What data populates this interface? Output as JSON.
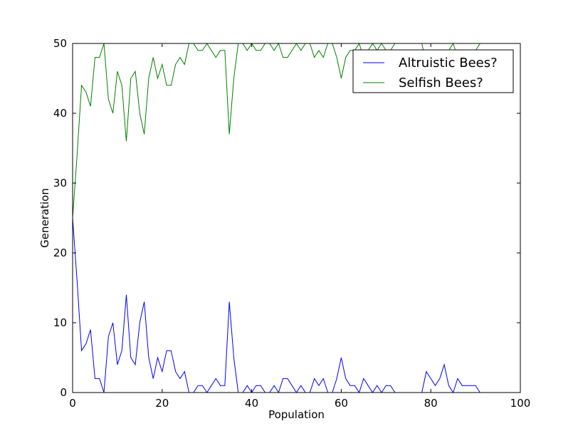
{
  "chart_data": {
    "type": "line",
    "title": "",
    "xlabel": "Population",
    "ylabel": "Generation",
    "xlim": [
      0,
      100
    ],
    "ylim": [
      0,
      50
    ],
    "xticks": [
      "0",
      "20",
      "40",
      "60",
      "80",
      "100"
    ],
    "yticks": [
      "0",
      "10",
      "20",
      "30",
      "40",
      "50"
    ],
    "grid": false,
    "legend_position": "upper-right",
    "series": [
      {
        "name": "Altruistic Bees?",
        "color": "#0000ff",
        "values": [
          25,
          16,
          6,
          7,
          9,
          2,
          2,
          0,
          8,
          10,
          4,
          6,
          14,
          5,
          4,
          10,
          13,
          5,
          2,
          5,
          3,
          6,
          6,
          3,
          2,
          3,
          0,
          0,
          1,
          1,
          0,
          1,
          2,
          1,
          1,
          13,
          5,
          0,
          0,
          1,
          0,
          1,
          1,
          0,
          0,
          1,
          0,
          2,
          2,
          1,
          0,
          1,
          0,
          0,
          2,
          1,
          2,
          0,
          0,
          2,
          5,
          2,
          1,
          1,
          0,
          2,
          1,
          0,
          1,
          0,
          1,
          1,
          0,
          0,
          0,
          0,
          0,
          0,
          0,
          3,
          2,
          1,
          2,
          4,
          1,
          0,
          2,
          1,
          1,
          1,
          1,
          0,
          0,
          0,
          0,
          0,
          0,
          0,
          0,
          0,
          0
        ]
      },
      {
        "name": "Selfish Bees?",
        "color": "#008000",
        "values": [
          25,
          34,
          44,
          43,
          41,
          48,
          48,
          50,
          42,
          40,
          46,
          44,
          36,
          45,
          46,
          40,
          37,
          45,
          48,
          45,
          47,
          44,
          44,
          47,
          48,
          47,
          50,
          50,
          49,
          49,
          50,
          49,
          48,
          49,
          49,
          37,
          45,
          50,
          50,
          49,
          50,
          49,
          49,
          50,
          50,
          49,
          50,
          48,
          48,
          49,
          50,
          49,
          50,
          50,
          48,
          49,
          48,
          50,
          50,
          48,
          45,
          48,
          49,
          49,
          50,
          48,
          49,
          50,
          49,
          50,
          49,
          49,
          50,
          50,
          50,
          50,
          50,
          50,
          50,
          47,
          48,
          49,
          48,
          46,
          49,
          50,
          48,
          49,
          49,
          49,
          49,
          50,
          50,
          50,
          50,
          50,
          50,
          50,
          50,
          50,
          50
        ]
      }
    ]
  }
}
